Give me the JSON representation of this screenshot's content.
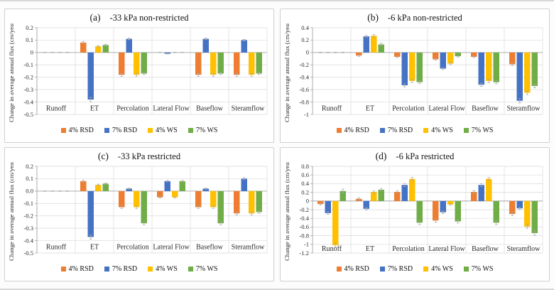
{
  "chart_data": [
    {
      "type": "bar",
      "panel_label": "(a)",
      "title": "-33 kPa non-restricted",
      "ylabel": "Change in average annual flux (cm/year)",
      "ylim": [
        -0.5,
        0.2
      ],
      "ytick_values": [
        0.2,
        0.1,
        0,
        -0.1,
        -0.2,
        -0.3,
        -0.4,
        -0.5
      ],
      "ytick_labels": [
        "0.2",
        "0.1",
        "0",
        "-0.1",
        "-0.2",
        "-0.3",
        "-0.4",
        "-0.5"
      ],
      "grid": true,
      "legend_position": "bottom",
      "categories": [
        "Runoff",
        "ET",
        "Percolation",
        "Lateral Flow",
        "Baseflow",
        "Steramflow"
      ],
      "series": [
        {
          "name": "4% RSD",
          "color": "#ED7D31",
          "values": [
            0,
            0.08,
            -0.18,
            0,
            -0.18,
            -0.18
          ],
          "errors": [
            0.002,
            0.008,
            0.012,
            0.002,
            0.012,
            0.012
          ]
        },
        {
          "name": "7% RSD",
          "color": "#4472C4",
          "values": [
            0,
            -0.38,
            0.11,
            -0.01,
            0.11,
            0.1
          ],
          "errors": [
            0.002,
            0.018,
            0.006,
            0.002,
            0.006,
            0.006
          ]
        },
        {
          "name": "4% WS",
          "color": "#FFC000",
          "values": [
            0,
            0.05,
            -0.18,
            0,
            -0.18,
            -0.18
          ],
          "errors": [
            0.002,
            0.006,
            0.012,
            0.002,
            0.012,
            0.012
          ]
        },
        {
          "name": "7% WS",
          "color": "#70AD47",
          "values": [
            0,
            0.06,
            -0.17,
            0,
            -0.17,
            -0.17
          ],
          "errors": [
            0.002,
            0.006,
            0.008,
            0.002,
            0.008,
            0.008
          ]
        }
      ]
    },
    {
      "type": "bar",
      "panel_label": "(b)",
      "title": "-6 kPa non-restricted",
      "ylabel": "Change in average annual flux (cm/year)",
      "ylim": [
        -1,
        0.4
      ],
      "ytick_values": [
        0.4,
        0.2,
        0,
        -0.2,
        -0.4,
        -0.6,
        -0.8,
        -1
      ],
      "ytick_labels": [
        "0.4",
        "0.2",
        "0",
        "-0.2",
        "-0.4",
        "-0.6",
        "-0.8",
        "-1"
      ],
      "grid": true,
      "legend_position": "bottom",
      "categories": [
        "Runoff",
        "ET",
        "Percolation",
        "Lateral Flow",
        "Baseflow",
        "Steramflow"
      ],
      "series": [
        {
          "name": "4% RSD",
          "color": "#ED7D31",
          "values": [
            0,
            -0.05,
            -0.07,
            -0.11,
            -0.07,
            -0.19
          ],
          "errors": [
            0.005,
            0.012,
            0.012,
            0.012,
            0.012,
            0.02
          ]
        },
        {
          "name": "7% RSD",
          "color": "#4472C4",
          "values": [
            0,
            0.26,
            -0.53,
            -0.26,
            -0.52,
            -0.78
          ],
          "errors": [
            0.005,
            0.02,
            0.025,
            0.015,
            0.025,
            0.035
          ]
        },
        {
          "name": "4% WS",
          "color": "#FFC000",
          "values": [
            0,
            0.27,
            -0.46,
            -0.18,
            -0.46,
            -0.65
          ],
          "errors": [
            0.005,
            0.02,
            0.025,
            0.015,
            0.025,
            0.03
          ]
        },
        {
          "name": "7% WS",
          "color": "#70AD47",
          "values": [
            0,
            0.13,
            -0.48,
            -0.06,
            -0.48,
            -0.54
          ],
          "errors": [
            0.005,
            0.02,
            0.025,
            0.012,
            0.025,
            0.03
          ]
        }
      ]
    },
    {
      "type": "bar",
      "panel_label": "(c)",
      "title": "-33 kPa restricted",
      "ylabel": "Change in average annual flux (cm/year)",
      "ylim": [
        -0.5,
        0.2
      ],
      "ytick_values": [
        0.2,
        0.1,
        0,
        -0.1,
        -0.2,
        -0.3,
        -0.4,
        -0.5
      ],
      "ytick_labels": [
        "0.2",
        "0.1",
        "0.0",
        "-0.1",
        "-0.2",
        "-0.3",
        "-0.4",
        "-0.5"
      ],
      "grid": true,
      "legend_position": "bottom",
      "categories": [
        "Runoff",
        "ET",
        "Percolation",
        "Lateral Flow",
        "Baseflow",
        "Steramflow"
      ],
      "series": [
        {
          "name": "4% RSD",
          "color": "#ED7D31",
          "values": [
            0,
            0.08,
            -0.13,
            -0.05,
            -0.13,
            -0.18
          ],
          "errors": [
            0.002,
            0.008,
            0.01,
            0.006,
            0.01,
            0.012
          ]
        },
        {
          "name": "7% RSD",
          "color": "#4472C4",
          "values": [
            0,
            -0.37,
            0.02,
            0.08,
            0.02,
            0.1
          ],
          "errors": [
            0.002,
            0.018,
            0.004,
            0.006,
            0.004,
            0.008
          ]
        },
        {
          "name": "4% WS",
          "color": "#FFC000",
          "values": [
            0,
            0.05,
            -0.13,
            -0.05,
            -0.13,
            -0.18
          ],
          "errors": [
            0.002,
            0.006,
            0.01,
            0.006,
            0.01,
            0.012
          ]
        },
        {
          "name": "7% WS",
          "color": "#70AD47",
          "values": [
            0,
            0.06,
            -0.26,
            0.08,
            -0.26,
            -0.17
          ],
          "errors": [
            0.002,
            0.006,
            0.012,
            0.006,
            0.012,
            0.01
          ]
        }
      ]
    },
    {
      "type": "bar",
      "panel_label": "(d)",
      "title": "-6 kPa restricted",
      "ylabel": "Change in average annual flux (cm/year)",
      "ylim": [
        -1.2,
        0.8
      ],
      "ytick_values": [
        0.8,
        0.6,
        0.4,
        0.2,
        0,
        -0.2,
        -0.4,
        -0.6,
        -0.8,
        -1,
        -1.2
      ],
      "ytick_labels": [
        "0.8",
        "0.6",
        "0.4",
        "0.2",
        "0",
        "-0.2",
        "-0.4",
        "-0.6",
        "-0.8",
        "-1",
        "-1.2"
      ],
      "grid": true,
      "legend_position": "bottom",
      "categories": [
        "Runoff",
        "ET",
        "Percolation",
        "Lateral Flow",
        "Baseflow",
        "Steramflow"
      ],
      "series": [
        {
          "name": "4% RSD",
          "color": "#ED7D31",
          "values": [
            -0.07,
            0.05,
            0.21,
            -0.45,
            0.21,
            -0.3
          ],
          "errors": [
            0.025,
            0.025,
            0.03,
            0.04,
            0.03,
            0.04
          ]
        },
        {
          "name": "7% RSD",
          "color": "#4472C4",
          "values": [
            -0.28,
            -0.18,
            0.37,
            -0.26,
            0.37,
            -0.17
          ],
          "errors": [
            0.03,
            0.03,
            0.035,
            0.03,
            0.035,
            0.03
          ]
        },
        {
          "name": "4% WS",
          "color": "#FFC000",
          "values": [
            -1.02,
            0.21,
            0.51,
            -0.08,
            0.51,
            -0.59
          ],
          "errors": [
            0.04,
            0.025,
            0.035,
            0.02,
            0.035,
            0.04
          ]
        },
        {
          "name": "7% WS",
          "color": "#70AD47",
          "values": [
            0.23,
            0.26,
            -0.5,
            -0.47,
            -0.5,
            -0.74
          ],
          "errors": [
            0.045,
            0.03,
            0.045,
            0.04,
            0.045,
            0.05
          ]
        }
      ]
    }
  ],
  "style_colors": {
    "gridline": "#d9d9d9",
    "axis": "#9a9a9a",
    "error_bar": "#a6a6a6"
  }
}
